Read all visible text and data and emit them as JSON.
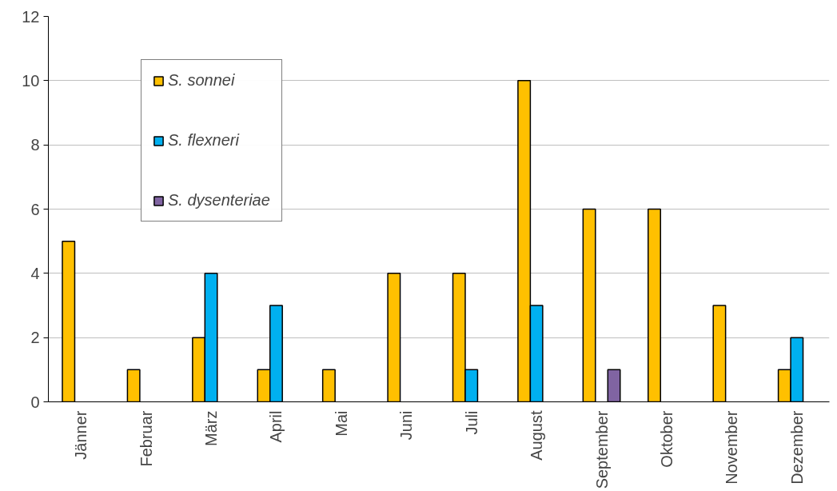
{
  "chart_data": {
    "type": "bar",
    "categories": [
      "Jänner",
      "Februar",
      "März",
      "April",
      "Mai",
      "Juni",
      "Juli",
      "August",
      "September",
      "Oktober",
      "November",
      "Dezember"
    ],
    "series": [
      {
        "name": "S. sonnei",
        "color": "#ffc000",
        "values": [
          5,
          1,
          2,
          1,
          1,
          4,
          4,
          10,
          6,
          6,
          3,
          1
        ]
      },
      {
        "name": "S. flexneri",
        "color": "#00b0f0",
        "values": [
          null,
          null,
          4,
          3,
          null,
          null,
          1,
          3,
          null,
          null,
          null,
          2
        ]
      },
      {
        "name": "S. dysenteriae",
        "color": "#8064a2",
        "values": [
          null,
          null,
          null,
          null,
          null,
          null,
          null,
          null,
          1,
          null,
          null,
          null
        ]
      }
    ],
    "ylim": [
      0,
      12
    ],
    "yticks": [
      0,
      2,
      4,
      6,
      8,
      10,
      12
    ],
    "grid": "y",
    "legend": "top left"
  }
}
